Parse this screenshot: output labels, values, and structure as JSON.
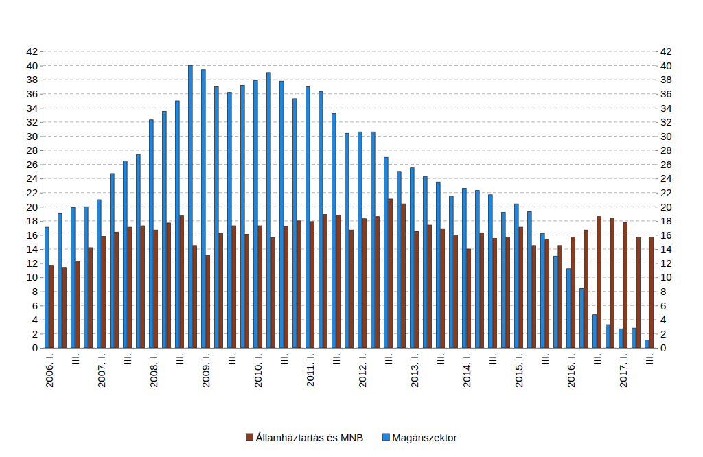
{
  "chart_data": {
    "type": "bar",
    "categories": [
      "2006. I.",
      null,
      "III.",
      null,
      "2007. I.",
      null,
      "III.",
      null,
      "2008. I.",
      null,
      "III.",
      null,
      "2009. I.",
      null,
      "III.",
      null,
      "2010. I.",
      null,
      "III.",
      null,
      "2011. I.",
      null,
      "III.",
      null,
      "2012. I.",
      null,
      "III.",
      null,
      "2013. I.",
      null,
      "III.",
      null,
      "2014. I.",
      null,
      "III.",
      null,
      "2015. I.",
      null,
      "III.",
      null,
      "2016. I.",
      null,
      "III.",
      null,
      "2017. I.",
      null,
      "III."
    ],
    "series": [
      {
        "name": "Államháztartás és MNB",
        "color": "#8b3a1c",
        "values": [
          11.7,
          11.4,
          12.3,
          14.2,
          15.8,
          16.4,
          17.1,
          17.3,
          16.7,
          17.7,
          18.7,
          14.5,
          13.1,
          16.2,
          17.3,
          16.1,
          17.3,
          15.6,
          17.2,
          18.0,
          17.9,
          18.9,
          18.8,
          16.7,
          18.3,
          18.6,
          21.1,
          20.4,
          16.5,
          17.4,
          16.9,
          16.0,
          14.0,
          16.3,
          15.5,
          15.7,
          17.1,
          14.5,
          15.3,
          14.5,
          15.7,
          16.7,
          18.6,
          18.4,
          17.8,
          15.7,
          15.7
        ]
      },
      {
        "name": "Magánszektor",
        "color": "#1f86e0",
        "values": [
          17.1,
          19.0,
          19.9,
          20.0,
          21.0,
          24.7,
          26.5,
          27.4,
          32.3,
          33.5,
          35.0,
          40.0,
          39.4,
          37.0,
          36.2,
          37.2,
          37.9,
          39.0,
          37.8,
          35.3,
          37.0,
          36.3,
          33.2,
          30.4,
          30.6,
          30.6,
          27.0,
          25.0,
          25.5,
          24.3,
          23.5,
          21.5,
          22.6,
          22.3,
          21.7,
          19.2,
          20.4,
          19.3,
          16.2,
          13.0,
          11.2,
          8.4,
          4.7,
          3.3,
          2.7,
          2.8,
          1.1
        ]
      }
    ],
    "ylim": [
      0,
      42
    ],
    "yticks": [
      0,
      2,
      4,
      6,
      8,
      10,
      12,
      14,
      16,
      18,
      20,
      22,
      24,
      26,
      28,
      30,
      32,
      34,
      36,
      38,
      40,
      42
    ],
    "y2lim": [
      0,
      42
    ],
    "y2ticks": [
      0,
      2,
      4,
      6,
      8,
      10,
      12,
      14,
      16,
      18,
      20,
      22,
      24,
      26,
      28,
      30,
      32,
      34,
      36,
      38,
      40,
      42
    ],
    "grid": true,
    "legend": "bottom"
  }
}
